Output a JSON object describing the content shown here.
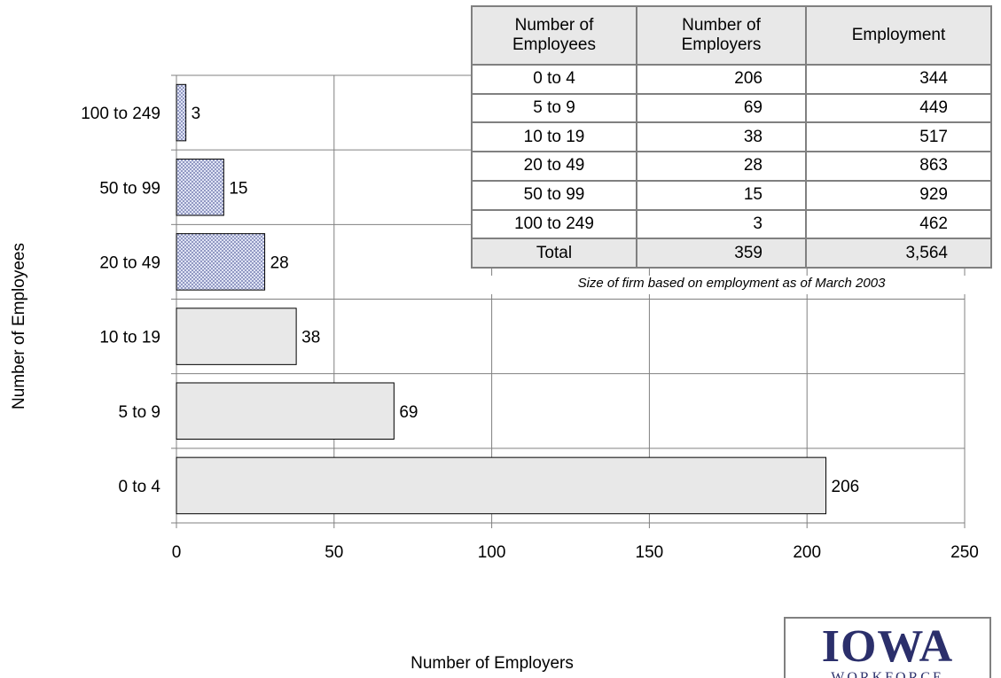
{
  "chart_data": {
    "type": "bar",
    "orientation": "horizontal",
    "categories": [
      "0 to 4",
      "5 to 9",
      "10 to 19",
      "20 to 49",
      "50 to 99",
      "100 to 249"
    ],
    "values": [
      206,
      69,
      38,
      28,
      15,
      3
    ],
    "data_labels": [
      "206",
      "69",
      "38",
      "28",
      "15",
      "3"
    ],
    "xlabel": "Number of Employers",
    "ylabel": "Number of Employees",
    "xlim": [
      0,
      250
    ],
    "x_ticks": [
      "0",
      "50",
      "100",
      "150",
      "200",
      "250"
    ],
    "grid": true,
    "bar_fill_colors": [
      "#e8e8e8",
      "#e8e8e8",
      "#e8e8e8",
      "#dfe3f4",
      "#dfe3f4",
      "#dfe3f4"
    ],
    "bar_pattern": [
      "solid",
      "solid",
      "solid",
      "dotted",
      "dotted",
      "dotted"
    ]
  },
  "table": {
    "headers": [
      "Number of Employees",
      "Number of Employers",
      "Employment"
    ],
    "rows": [
      [
        "0 to 4",
        "206",
        "344"
      ],
      [
        "5 to 9",
        "69",
        "449"
      ],
      [
        "10 to 19",
        "38",
        "517"
      ],
      [
        "20 to 49",
        "28",
        "863"
      ],
      [
        "50 to 99",
        "15",
        "929"
      ],
      [
        "100 to 249",
        "3",
        "462"
      ]
    ],
    "total": [
      "Total",
      "359",
      "3,564"
    ],
    "caption": "Size of firm based on employment as of March 2003"
  },
  "logo": {
    "text": "IOWA",
    "subtext": "WORKFORCE",
    "color": "#2b2f6b"
  }
}
